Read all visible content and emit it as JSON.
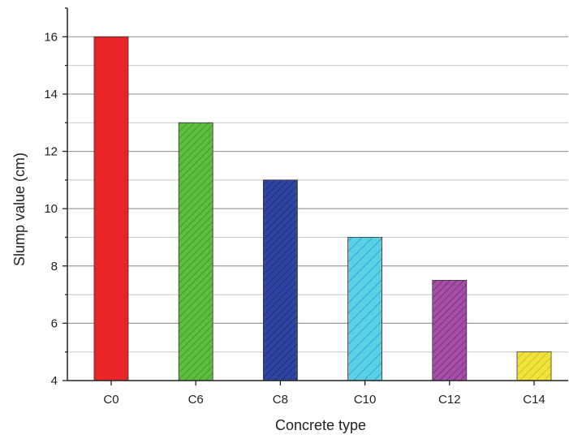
{
  "chart_data": {
    "type": "bar",
    "title": "",
    "xlabel": "Concrete type",
    "ylabel": "Slump value (cm)",
    "categories": [
      "C0",
      "C6",
      "C8",
      "C10",
      "C12",
      "C14"
    ],
    "values": [
      16,
      13,
      11,
      9,
      7.5,
      5
    ],
    "ylim": [
      4,
      17
    ],
    "yticks": [
      4,
      6,
      8,
      10,
      12,
      14,
      16
    ],
    "grid": true,
    "legend": "none",
    "bar_colors": [
      "#e8262a",
      "#5cbf3f",
      "#2f45a1",
      "#5ad0e3",
      "#a54fa8",
      "#f1e33a"
    ],
    "bar_patterns": [
      "solid",
      "hatch",
      "hatch",
      "hatch",
      "hatch",
      "hatch"
    ]
  }
}
